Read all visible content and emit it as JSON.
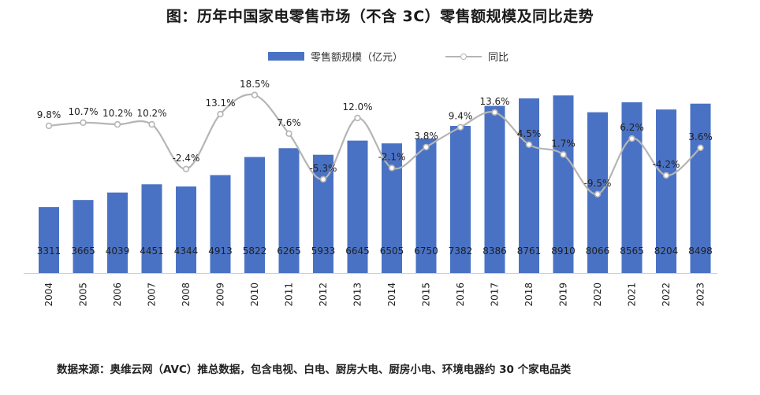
{
  "title": "图：历年中国家电零售市场（不含 3C）零售额规模及同比走势",
  "source": "数据来源：奥维云网（AVC）推总数据，包含电视、白电、厨房大电、厨房小电、环境电器约 30 个家电品类",
  "colors": {
    "bar": "#4a72c4",
    "line": "#b5b5b5",
    "marker_fill": "#ffffff"
  },
  "chart_data": {
    "type": "bar",
    "title": "图：历年中国家电零售市场（不含 3C）零售额规模及同比走势",
    "categories": [
      "2004",
      "2005",
      "2006",
      "2007",
      "2008",
      "2009",
      "2010",
      "2011",
      "2012",
      "2013",
      "2014",
      "2015",
      "2016",
      "2017",
      "2018",
      "2019",
      "2020",
      "2021",
      "2022",
      "2023"
    ],
    "series": [
      {
        "name": "零售额规模（亿元）",
        "type": "bar",
        "values": [
          3311,
          3665,
          4039,
          4451,
          4344,
          4913,
          5822,
          6265,
          5933,
          6645,
          6505,
          6750,
          7382,
          8386,
          8761,
          8910,
          8066,
          8565,
          8204,
          8498
        ],
        "labels": [
          "3311",
          "3665",
          "4039",
          "4451",
          "4344",
          "4913",
          "5822",
          "6265",
          "5933",
          "6645",
          "6505",
          "6750",
          "7382",
          "8386",
          "8761",
          "8910",
          "8066",
          "8565",
          "8204",
          "8498"
        ]
      },
      {
        "name": "同比",
        "type": "line",
        "values": [
          9.8,
          10.7,
          10.2,
          10.2,
          -2.4,
          13.1,
          18.5,
          7.6,
          -5.3,
          12.0,
          -2.1,
          3.8,
          9.4,
          13.6,
          4.5,
          1.7,
          -9.5,
          6.2,
          -4.2,
          3.6
        ],
        "labels": [
          "9.8%",
          "10.7%",
          "10.2%",
          "10.2%",
          "-2.4%",
          "13.1%",
          "18.5%",
          "7.6%",
          "-5.3%",
          "12.0%",
          "-2.1%",
          "3.8%",
          "9.4%",
          "13.6%",
          "4.5%",
          "1.7%",
          "-9.5%",
          "6.2%",
          "-4.2%",
          "3.6%"
        ]
      }
    ],
    "bar_axis": {
      "ylim": [
        0,
        9000
      ]
    },
    "line_axis": {
      "ylim": [
        -25,
        26
      ]
    },
    "xlabel": "",
    "ylabel": "",
    "grid": false,
    "legend": "top-center"
  }
}
